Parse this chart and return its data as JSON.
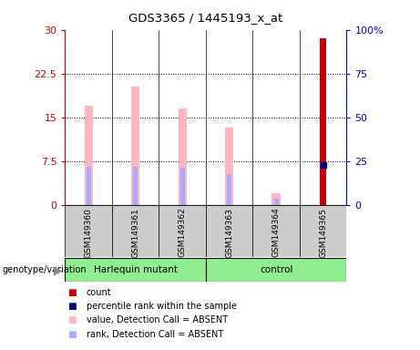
{
  "title": "GDS3365 / 1445193_x_at",
  "samples": [
    "GSM149360",
    "GSM149361",
    "GSM149362",
    "GSM149363",
    "GSM149364",
    "GSM149365"
  ],
  "pink_values": [
    17.0,
    20.2,
    16.5,
    13.2,
    2.0,
    0
  ],
  "blue_rank_values": [
    6.5,
    6.5,
    6.3,
    5.2,
    1.0,
    0
  ],
  "red_count_values": [
    0,
    0,
    0,
    0,
    0,
    28.5
  ],
  "blue_percentile_values": [
    0,
    0,
    0,
    0,
    0,
    22.5
  ],
  "ylim_left": [
    0,
    30
  ],
  "ylim_right": [
    0,
    100
  ],
  "yticks_left": [
    0,
    7.5,
    15,
    22.5,
    30
  ],
  "yticks_right": [
    0,
    25,
    50,
    75,
    100
  ],
  "left_tick_labels": [
    "0",
    "7.5",
    "15",
    "22.5",
    "30"
  ],
  "right_tick_labels": [
    "0",
    "25",
    "50",
    "75",
    "100%"
  ],
  "left_color": "#cc0000",
  "right_color": "#0000cc",
  "plot_bg_color": "#ffffff",
  "label_bg_color": "#cccccc",
  "pink_color": "#ffb6c1",
  "blue_rank_color": "#aaaaff",
  "red_bar_color": "#cc0000",
  "blue_dot_color": "#00008b",
  "group1_label": "Harlequin mutant",
  "group2_label": "control",
  "group_color": "#90EE90",
  "genotype_label": "genotype/variation",
  "legend_items": [
    {
      "label": "count",
      "color": "#cc0000"
    },
    {
      "label": "percentile rank within the sample",
      "color": "#00008b"
    },
    {
      "label": "value, Detection Call = ABSENT",
      "color": "#ffb6c1"
    },
    {
      "label": "rank, Detection Call = ABSENT",
      "color": "#aaaaff"
    }
  ],
  "pink_bar_width": 0.18,
  "blue_bar_width": 0.1,
  "red_bar_width": 0.12
}
